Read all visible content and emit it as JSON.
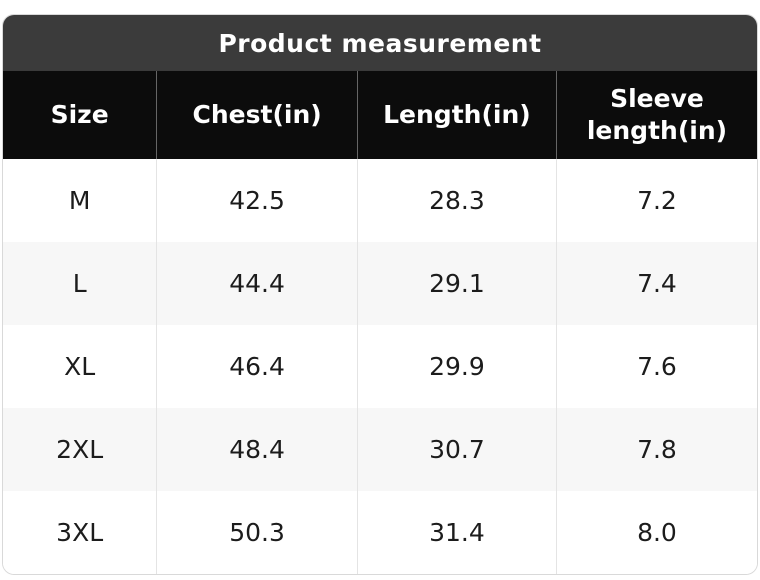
{
  "card": {
    "title": "Product measurement"
  },
  "table": {
    "columns": [
      "Size",
      "Chest(in)",
      "Length(in)",
      "Sleeve length(in)"
    ],
    "rows": [
      [
        "M",
        "42.5",
        "28.3",
        "7.2"
      ],
      [
        "L",
        "44.4",
        "29.1",
        "7.4"
      ],
      [
        "XL",
        "46.4",
        "29.9",
        "7.6"
      ],
      [
        "2XL",
        "48.4",
        "30.7",
        "7.8"
      ],
      [
        "3XL",
        "50.3",
        "31.4",
        "8.0"
      ]
    ]
  },
  "colors": {
    "title_bar_bg": "#3b3b3b",
    "header_bg": "#0c0c0c",
    "header_text": "#ffffff",
    "row_alt_bg": "#f7f7f7",
    "card_border": "#d9d9d9"
  }
}
